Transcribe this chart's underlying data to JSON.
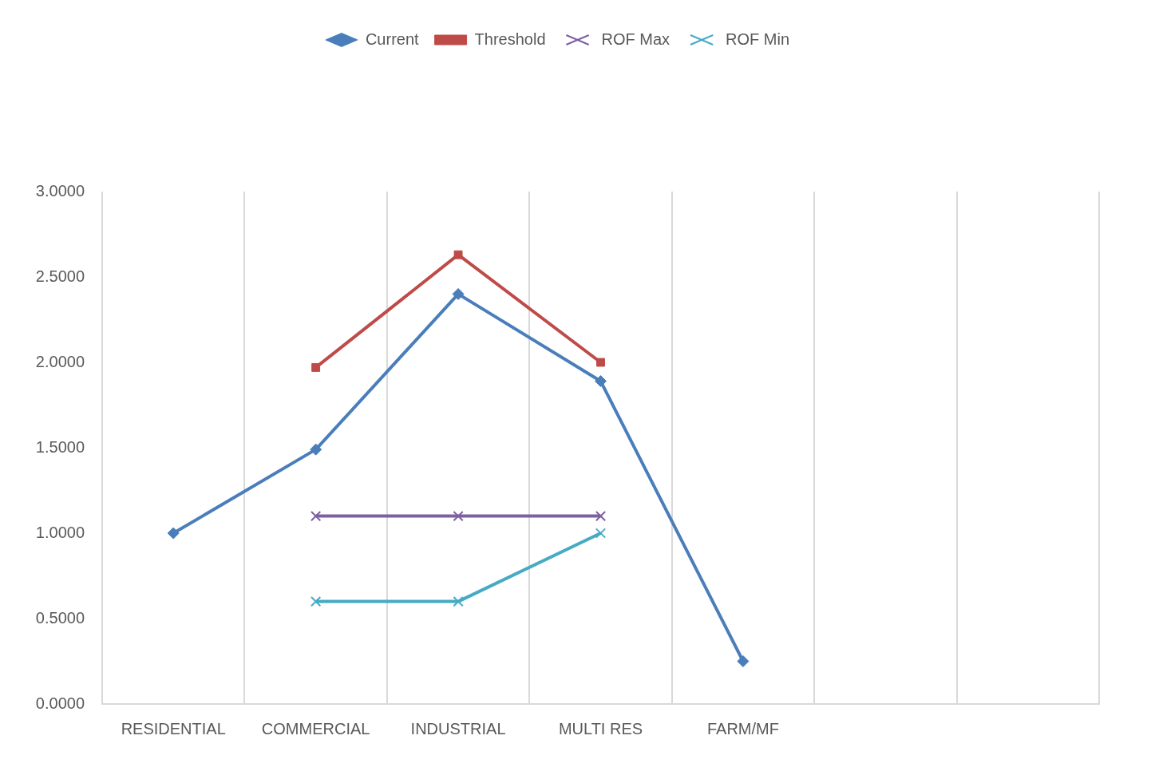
{
  "chart_data": {
    "type": "line",
    "categories": [
      "RESIDENTIAL",
      "COMMERCIAL",
      "INDUSTRIAL",
      "MULTI RES",
      "FARM/MF",
      null,
      null
    ],
    "series": [
      {
        "name": "Current",
        "color": "#4a7ebb",
        "marker": "diamond",
        "values": [
          1.0,
          1.49,
          2.4,
          1.89,
          0.25,
          null,
          null
        ]
      },
      {
        "name": "Threshold",
        "color": "#be4b48",
        "marker": "square",
        "values": [
          null,
          1.97,
          2.63,
          2.0,
          null,
          null,
          null
        ]
      },
      {
        "name": "ROF Max",
        "color": "#7d60a0",
        "marker": "cross",
        "values": [
          null,
          1.1,
          1.1,
          1.1,
          null,
          null,
          null
        ]
      },
      {
        "name": "ROF Min",
        "color": "#46aac5",
        "marker": "cross",
        "values": [
          null,
          0.6,
          0.6,
          1.0,
          null,
          null,
          null
        ]
      }
    ],
    "ylim": [
      0,
      3
    ],
    "yticks": [
      {
        "value": 0,
        "label": "0.0000"
      },
      {
        "value": 0.5,
        "label": "0.5000"
      },
      {
        "value": 1,
        "label": "1.0000"
      },
      {
        "value": 1.5,
        "label": "1.5000"
      },
      {
        "value": 2,
        "label": "2.0000"
      },
      {
        "value": 2.5,
        "label": "2.5000"
      },
      {
        "value": 3,
        "label": "3.0000"
      }
    ],
    "grid": "x",
    "legend": "top",
    "line_style": "solid"
  }
}
